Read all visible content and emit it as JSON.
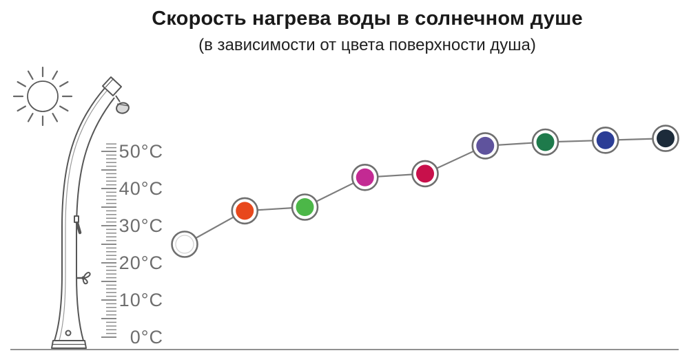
{
  "header": {
    "title": "Скорость нагрева воды в солнечном душе",
    "subtitle": "(в зависимости от цвета поверхности душа)"
  },
  "chart_data": {
    "type": "line",
    "title": "Скорость нагрева воды в солнечном душе",
    "subtitle": "(в зависимости от цвета поверхности душа)",
    "grid": false,
    "legend": false,
    "y_axis": {
      "tick_values": [
        0,
        10,
        20,
        30,
        40,
        50
      ],
      "tick_suffix": "°C",
      "range": [
        0,
        52
      ]
    },
    "series": [
      {
        "points": [
          {
            "marker_color": "#ffffff",
            "temp_c": 25
          },
          {
            "marker_color": "#e8481c",
            "temp_c": 34
          },
          {
            "marker_color": "#4cb748",
            "temp_c": 35
          },
          {
            "marker_color": "#c32a93",
            "temp_c": 43
          },
          {
            "marker_color": "#c8104b",
            "temp_c": 44
          },
          {
            "marker_color": "#5f539d",
            "temp_c": 51.5
          },
          {
            "marker_color": "#1e7a4b",
            "temp_c": 52.5
          },
          {
            "marker_color": "#2b3d96",
            "temp_c": 53
          },
          {
            "marker_color": "#1c2b3a",
            "tem_c_note": "",
            "temp_c": 53.5
          }
        ]
      }
    ],
    "line_color": "#7d7d7d",
    "marker_ring_color": "#6f6f6f",
    "ruler_tick_color": "#8a8a8a",
    "tick_label_color": "#6e6e6e"
  }
}
